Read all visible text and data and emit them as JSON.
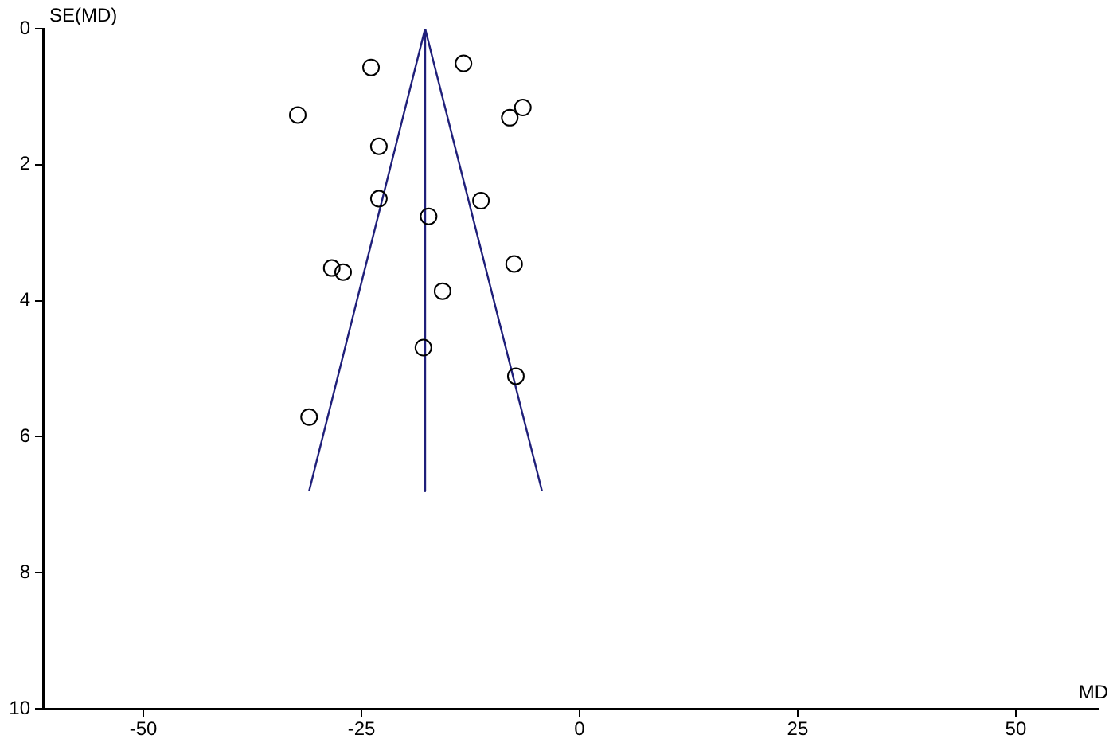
{
  "chart_data": {
    "type": "scatter",
    "xlabel": "MD",
    "ylabel": "SE(MD)",
    "xlim": [
      -61.5,
      59.5
    ],
    "xticks": [
      -50,
      -25,
      0,
      25,
      50
    ],
    "ylim": [
      10,
      0
    ],
    "yticks": [
      0,
      2,
      4,
      6,
      8,
      10
    ],
    "grid": false,
    "legend": false,
    "marker": "circle",
    "series": [
      {
        "type": "scatter",
        "color": "#000000",
        "x": [
          -23.9,
          -13.3,
          -32.3,
          -6.5,
          -8.0,
          -23.0,
          -23.0,
          -11.3,
          -17.3,
          -28.4,
          -27.1,
          -7.5,
          -15.7,
          -17.9,
          -7.3,
          -31.0
        ],
        "values": [
          0.57,
          0.51,
          1.27,
          1.16,
          1.31,
          1.73,
          2.5,
          2.53,
          2.76,
          3.52,
          3.58,
          3.46,
          3.86,
          4.69,
          5.11,
          5.71
        ]
      },
      {
        "type": "line",
        "color": "#1f1f7a",
        "marker": "none",
        "line_style": "solid",
        "x": [
          -31.0,
          -17.7,
          -4.3
        ],
        "values": [
          6.8,
          0,
          6.8
        ]
      },
      {
        "type": "line",
        "color": "#1f1f7a",
        "marker": "none",
        "line_style": "solid",
        "x": [
          -17.7,
          -17.7
        ],
        "values": [
          0,
          6.8
        ]
      }
    ]
  }
}
